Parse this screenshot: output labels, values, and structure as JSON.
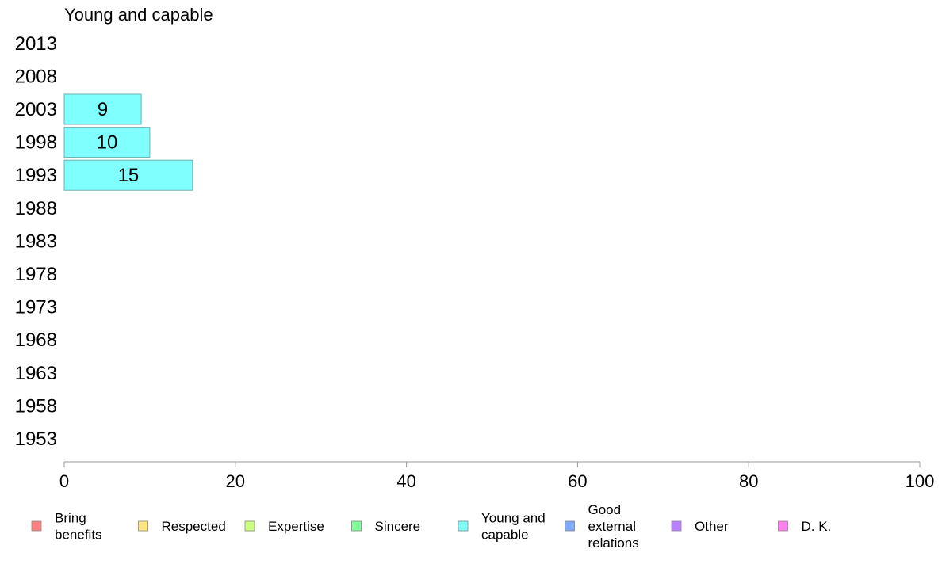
{
  "chart_data": {
    "type": "bar",
    "orientation": "horizontal",
    "title": "Young and capable",
    "categories": [
      "2013",
      "2008",
      "2003",
      "1998",
      "1993",
      "1988",
      "1983",
      "1978",
      "1973",
      "1968",
      "1963",
      "1958",
      "1953"
    ],
    "series": [
      {
        "name": "Young and capable",
        "color": "#80ffff",
        "values": [
          null,
          null,
          9,
          10,
          15,
          null,
          null,
          null,
          null,
          null,
          null,
          null,
          null
        ]
      }
    ],
    "xlim": [
      0,
      100
    ],
    "xticks": [
      0,
      20,
      40,
      60,
      80,
      100
    ],
    "grid": false,
    "legend_position": "bottom",
    "legend": [
      {
        "lines": [
          "Bring",
          "benefits"
        ],
        "color": "#ff8080"
      },
      {
        "lines": [
          "Respected"
        ],
        "color": "#ffe680"
      },
      {
        "lines": [
          "Expertise"
        ],
        "color": "#ccff80"
      },
      {
        "lines": [
          "Sincere"
        ],
        "color": "#80ff99"
      },
      {
        "lines": [
          "Young and",
          "capable"
        ],
        "color": "#80ffff"
      },
      {
        "lines": [
          "Good",
          "external",
          "relations"
        ],
        "color": "#80aaff"
      },
      {
        "lines": [
          "Other"
        ],
        "color": "#bb80ff"
      },
      {
        "lines": [
          "D. K."
        ],
        "color": "#ff80ee"
      }
    ]
  }
}
